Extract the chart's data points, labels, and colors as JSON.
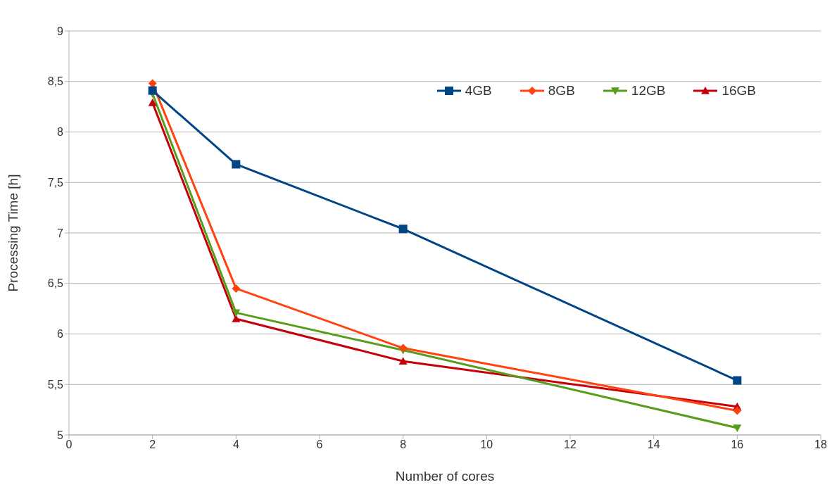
{
  "chart_data": {
    "type": "line",
    "xlabel": "Number of cores",
    "ylabel": "Processing Time [h]",
    "xlim": [
      0,
      18
    ],
    "xticks": [
      0,
      2,
      4,
      6,
      8,
      10,
      12,
      14,
      16,
      18
    ],
    "ylim": [
      5,
      9
    ],
    "yticks": [
      5,
      {
        "value": 5.5,
        "label": "5,5"
      },
      6,
      {
        "value": 6.5,
        "label": "6,5"
      },
      7,
      {
        "value": 7.5,
        "label": "7,5"
      },
      8,
      {
        "value": 8.5,
        "label": "8,5"
      },
      9
    ],
    "x": [
      2,
      4,
      8,
      16
    ],
    "grid": "y",
    "legend": "top right",
    "series": [
      {
        "name": "4GB",
        "color": "#004586",
        "marker": "square",
        "values": [
          8.41,
          7.68,
          7.04,
          5.54
        ]
      },
      {
        "name": "8GB",
        "color": "#ff420e",
        "marker": "diamond",
        "values": [
          8.48,
          6.45,
          5.86,
          5.24
        ]
      },
      {
        "name": "12GB",
        "color": "#579d1c",
        "marker": "triangle-down",
        "values": [
          8.38,
          6.21,
          5.84,
          5.07
        ]
      },
      {
        "name": "16GB",
        "color": "#c5000b",
        "marker": "triangle",
        "values": [
          8.29,
          6.15,
          5.73,
          5.28
        ]
      }
    ]
  }
}
